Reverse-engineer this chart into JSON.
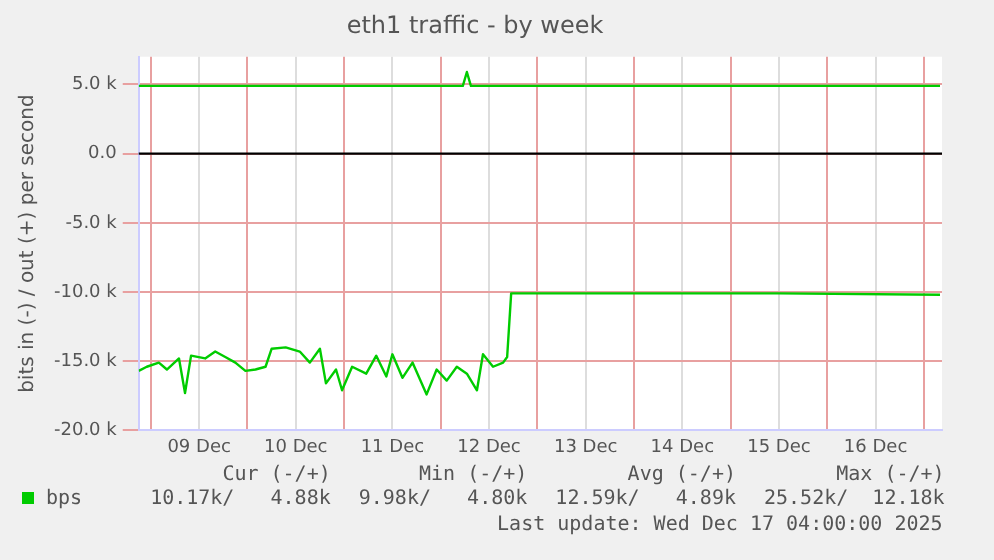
{
  "chart_data": {
    "type": "line",
    "title": "eth1 traffic - by week",
    "ylabel": "bits in (-) / out (+) per second",
    "xlim": [
      "2025-12-08T21:00",
      "2025-12-17T04:30"
    ],
    "xticks": [
      {
        "value": "2025-12-09T00:00",
        "label": null
      },
      {
        "value": "2025-12-09T12:00",
        "label": "09 Dec"
      },
      {
        "value": "2025-12-10T00:00",
        "label": null
      },
      {
        "value": "2025-12-10T12:00",
        "label": "10 Dec"
      },
      {
        "value": "2025-12-11T00:00",
        "label": null
      },
      {
        "value": "2025-12-11T12:00",
        "label": "11 Dec"
      },
      {
        "value": "2025-12-12T00:00",
        "label": null
      },
      {
        "value": "2025-12-12T12:00",
        "label": "12 Dec"
      },
      {
        "value": "2025-12-13T00:00",
        "label": null
      },
      {
        "value": "2025-12-13T12:00",
        "label": "13 Dec"
      },
      {
        "value": "2025-12-14T00:00",
        "label": null
      },
      {
        "value": "2025-12-14T12:00",
        "label": "14 Dec"
      },
      {
        "value": "2025-12-15T00:00",
        "label": null
      },
      {
        "value": "2025-12-15T12:00",
        "label": "15 Dec"
      },
      {
        "value": "2025-12-16T00:00",
        "label": null
      },
      {
        "value": "2025-12-16T12:00",
        "label": "16 Dec"
      },
      {
        "value": "2025-12-17T00:00",
        "label": null
      }
    ],
    "ylim": [
      -20000,
      7000
    ],
    "yticks": [
      {
        "value": 5000,
        "label": "5.0 k"
      },
      {
        "value": 0,
        "label": "0.0"
      },
      {
        "value": -5000,
        "label": "-5.0 k"
      },
      {
        "value": -10000,
        "label": "-10.0 k"
      },
      {
        "value": -15000,
        "label": "-15.0 k"
      },
      {
        "value": -20000,
        "label": "-20.0 k"
      }
    ],
    "grid": true,
    "legend": "bottom left",
    "marker": "none",
    "line_style": "solid",
    "ref_lines": [
      {
        "axis": "y",
        "value": 0,
        "color": "#000000"
      }
    ],
    "series": [
      {
        "name": "bps",
        "color": "#00cc00",
        "x": [
          "2025-12-08T21:00",
          "2025-12-08T23:00",
          "2025-12-09T02:00",
          "2025-12-09T04:00",
          "2025-12-09T07:00",
          "2025-12-09T08:30",
          "2025-12-09T10:00",
          "2025-12-09T13:30",
          "2025-12-09T16:00",
          "2025-12-09T18:30",
          "2025-12-09T21:00",
          "2025-12-09T23:30",
          "2025-12-10T02:00",
          "2025-12-10T04:30",
          "2025-12-10T06:00",
          "2025-12-10T09:30",
          "2025-12-10T13:00",
          "2025-12-10T15:30",
          "2025-12-10T18:00",
          "2025-12-10T19:30",
          "2025-12-10T22:00",
          "2025-12-10T23:30",
          "2025-12-11T02:00",
          "2025-12-11T05:30",
          "2025-12-11T08:00",
          "2025-12-11T10:30",
          "2025-12-11T12:00",
          "2025-12-11T14:30",
          "2025-12-11T17:00",
          "2025-12-11T20:30",
          "2025-12-11T23:00",
          "2025-12-12T01:30",
          "2025-12-12T04:00",
          "2025-12-12T06:30",
          "2025-12-12T09:00",
          "2025-12-12T10:30",
          "2025-12-12T13:00",
          "2025-12-12T15:30",
          "2025-12-12T16:30",
          "2025-12-12T17:30",
          "2025-12-14T00:00",
          "2025-12-15T12:00",
          "2025-12-17T04:00"
        ],
        "values": [
          -15700,
          -15400,
          -15100,
          -15600,
          -14800,
          -17300,
          -14600,
          -14800,
          -14300,
          -14700,
          -15100,
          -15700,
          -15600,
          -15400,
          -14100,
          -14000,
          -14300,
          -15100,
          -14100,
          -16600,
          -15600,
          -17100,
          -15400,
          -15900,
          -14600,
          -16100,
          -14500,
          -16200,
          -15100,
          -17400,
          -15600,
          -16400,
          -15400,
          -15900,
          -17100,
          -14500,
          -15400,
          -15100,
          -14700,
          -10100,
          -10100,
          -10100,
          -10200
        ]
      },
      {
        "color": "#00cc00",
        "x": [
          "2025-12-08T21:00",
          "2025-12-12T05:30",
          "2025-12-12T06:30",
          "2025-12-12T07:30",
          "2025-12-17T04:00"
        ],
        "values": [
          4900,
          4900,
          5900,
          4900,
          4900
        ]
      }
    ],
    "annotations": [
      "Cur (-/+)",
      "Min (-/+)",
      "Avg (-/+)",
      "Max (-/+)",
      "10.17k/   4.88k",
      "9.98k/   4.80k",
      "12.59k/   4.89k",
      "25.52k/  12.18k",
      "Last update: Wed Dec 17 04:00:00 2025"
    ]
  }
}
